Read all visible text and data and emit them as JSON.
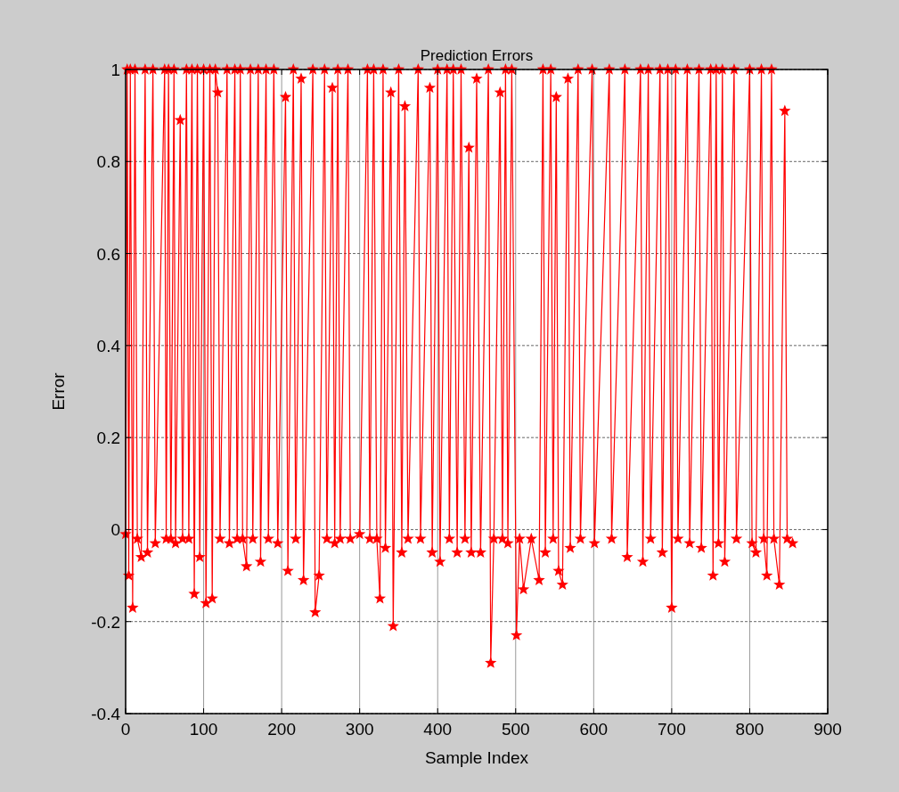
{
  "chart_data": {
    "type": "line",
    "title": "Prediction Errors",
    "xlabel": "Sample Index",
    "ylabel": "Error",
    "xlim": [
      0,
      900
    ],
    "xticks": [
      0,
      100,
      200,
      300,
      400,
      500,
      600,
      700,
      800,
      900
    ],
    "ylim": [
      -0.4,
      1
    ],
    "yticks": [
      -0.4,
      -0.2,
      0,
      0.2,
      0.4,
      0.6,
      0.8,
      1
    ],
    "grid": true,
    "marker": "star",
    "line_style": "solid",
    "series": [
      {
        "color": "#ff0000",
        "x": [
          0,
          2,
          4,
          6,
          9,
          12,
          15,
          20,
          25,
          28,
          35,
          38,
          50,
          52,
          55,
          58,
          62,
          64,
          70,
          73,
          78,
          81,
          85,
          88,
          92,
          95,
          100,
          103,
          108,
          111,
          115,
          118,
          121,
          130,
          133,
          140,
          143,
          147,
          150,
          155,
          160,
          163,
          170,
          173,
          180,
          183,
          190,
          195,
          205,
          208,
          215,
          218,
          225,
          228,
          240,
          243,
          248,
          255,
          258,
          265,
          268,
          272,
          275,
          285,
          288,
          300,
          310,
          313,
          318,
          322,
          326,
          330,
          333,
          340,
          343,
          350,
          354,
          358,
          362,
          375,
          378,
          390,
          393,
          400,
          403,
          412,
          415,
          420,
          425,
          430,
          435,
          440,
          443,
          450,
          455,
          465,
          468,
          472,
          480,
          483,
          487,
          490,
          495,
          501,
          505,
          510,
          520,
          530,
          535,
          538,
          545,
          548,
          552,
          555,
          560,
          567,
          570,
          580,
          583,
          598,
          601,
          620,
          623,
          640,
          643,
          660,
          663,
          670,
          673,
          685,
          688,
          695,
          700,
          705,
          708,
          720,
          723,
          735,
          738,
          750,
          753,
          757,
          760,
          765,
          768,
          780,
          783,
          800,
          803,
          808,
          815,
          818,
          822,
          828,
          831,
          838,
          845,
          848,
          855
        ],
        "values": [
          -0.01,
          1,
          -0.1,
          1,
          -0.17,
          1,
          -0.02,
          -0.06,
          1,
          -0.05,
          1,
          -0.03,
          1,
          -0.02,
          1,
          -0.02,
          1,
          -0.03,
          0.89,
          -0.02,
          1,
          -0.02,
          1,
          -0.14,
          1,
          -0.06,
          1,
          -0.16,
          1,
          -0.15,
          1,
          0.95,
          -0.02,
          1,
          -0.03,
          1,
          -0.02,
          1,
          -0.02,
          -0.08,
          1,
          -0.02,
          1,
          -0.07,
          1,
          -0.02,
          1,
          -0.03,
          0.94,
          -0.09,
          1,
          -0.02,
          0.98,
          -0.11,
          1,
          -0.18,
          -0.1,
          1,
          -0.02,
          0.96,
          -0.03,
          1,
          -0.02,
          1,
          -0.02,
          -0.01,
          1,
          -0.02,
          1,
          -0.02,
          -0.15,
          1,
          -0.04,
          0.95,
          -0.21,
          1,
          -0.05,
          0.92,
          -0.02,
          1,
          -0.02,
          0.96,
          -0.05,
          1,
          -0.07,
          1,
          -0.02,
          1,
          -0.05,
          1,
          -0.02,
          0.83,
          -0.05,
          0.98,
          -0.05,
          1,
          -0.29,
          -0.02,
          0.95,
          -0.02,
          1,
          -0.03,
          1,
          -0.23,
          -0.02,
          -0.13,
          -0.02,
          -0.11,
          1,
          -0.05,
          1,
          -0.02,
          0.94,
          -0.09,
          -0.12,
          0.98,
          -0.04,
          1,
          -0.02,
          1,
          -0.03,
          1,
          -0.02,
          1,
          -0.06,
          1,
          -0.07,
          1,
          -0.02,
          1,
          -0.05,
          1,
          -0.17,
          1,
          -0.02,
          1,
          -0.03,
          1,
          -0.04,
          1,
          -0.1,
          1,
          -0.03,
          1,
          -0.07,
          1,
          -0.02,
          1,
          -0.03,
          -0.05,
          1,
          -0.02,
          -0.1,
          1,
          -0.02,
          -0.12,
          0.91,
          -0.02,
          -0.03
        ]
      }
    ]
  }
}
